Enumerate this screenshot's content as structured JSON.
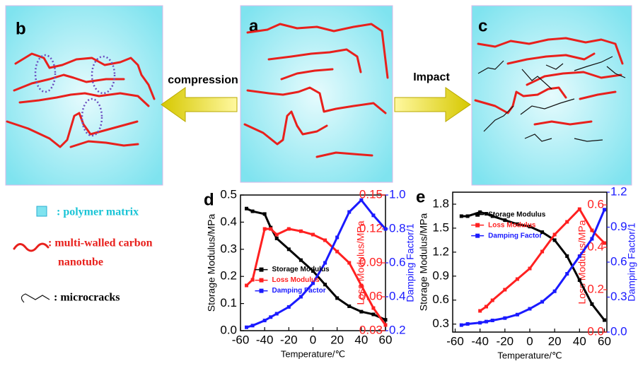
{
  "panels": {
    "a": "a",
    "b": "b",
    "c": "c"
  },
  "arrows": {
    "left": "compression",
    "right": "Impact"
  },
  "key": {
    "matrix": ": polymer matrix",
    "cnt_line1": ": multi-walled carbon",
    "cnt_line2": "nanotube",
    "cracks": ": microcracks"
  },
  "chart_data": [
    {
      "type": "line",
      "panel": "d",
      "xlabel": "Temperature/℃",
      "ylabel": "Storage Modulus/MPa",
      "y2label": "Loss Modulus/MPa",
      "y3label": "Damping Factor/1",
      "xlim": [
        -60,
        60
      ],
      "xticks": [
        -60,
        -40,
        -20,
        0,
        20,
        40,
        60
      ],
      "ylim": [
        0,
        0.5
      ],
      "yticks": [
        {
          "value": 0,
          "label": "0.0"
        },
        0.1,
        0.2,
        0.3,
        0.4,
        0.5
      ],
      "y2lim": [
        0.03,
        0.15
      ],
      "y2ticks": [
        0.03,
        0.06,
        0.09,
        0.12,
        0.15
      ],
      "y3lim": [
        0.2,
        1.0
      ],
      "y3ticks": [
        0.2,
        0.4,
        0.6,
        0.8,
        {
          "value": 1,
          "label": "1.0"
        }
      ],
      "legend": "center left",
      "x": [
        -55,
        -50,
        -40,
        -35,
        -30,
        -20,
        -10,
        0,
        10,
        20,
        30,
        40,
        50,
        60
      ],
      "series": [
        {
          "name": "Storage Modulus",
          "color": "#000000",
          "axis": "y",
          "values": [
            0.45,
            0.44,
            0.43,
            0.38,
            0.34,
            0.3,
            0.26,
            0.22,
            0.17,
            0.12,
            0.09,
            0.07,
            0.06,
            0.04
          ]
        },
        {
          "name": "Loss Modulus",
          "color": "#ff2020",
          "axis": "y2",
          "values": [
            0.07,
            0.075,
            0.12,
            0.12,
            0.115,
            0.12,
            0.118,
            0.115,
            0.11,
            0.1,
            0.09,
            0.07,
            0.05,
            0.035
          ]
        },
        {
          "name": "Damping Factor",
          "color": "#1a1aff",
          "axis": "y3",
          "values": [
            0.22,
            0.23,
            0.26,
            0.28,
            0.3,
            0.34,
            0.4,
            0.48,
            0.6,
            0.75,
            0.9,
            0.97,
            0.88,
            0.8
          ]
        }
      ]
    },
    {
      "type": "line",
      "panel": "e",
      "xlabel": "Temperature/℃",
      "ylabel": "Storage Modulus/MPa",
      "y2label": "Loss Modulus/MPa",
      "y3label": "Damping Factor/1",
      "xlim": [
        -62,
        62
      ],
      "xticks": [
        -60,
        -40,
        -20,
        0,
        20,
        40,
        60
      ],
      "ylim": [
        0.2,
        1.95
      ],
      "yticks": [
        0.3,
        0.6,
        0.9,
        1.2,
        1.5,
        1.8
      ],
      "y2lim": [
        0,
        0.66
      ],
      "y2ticks": [
        {
          "value": 0,
          "label": "0.0"
        },
        0.2,
        0.4,
        0.6
      ],
      "y3lim": [
        0,
        1.2
      ],
      "y3ticks": [
        {
          "value": 0,
          "label": "0.0"
        },
        0.3,
        0.6,
        0.9,
        1.2
      ],
      "legend": "upper left",
      "x": [
        -55,
        -50,
        -40,
        -35,
        -30,
        -20,
        -10,
        0,
        10,
        20,
        30,
        40,
        50,
        60
      ],
      "series": [
        {
          "name": "Storage Modulus",
          "color": "#000000",
          "axis": "y",
          "values": [
            1.65,
            1.65,
            1.7,
            1.68,
            1.65,
            1.6,
            1.55,
            1.52,
            1.45,
            1.35,
            1.15,
            0.85,
            0.55,
            0.35
          ]
        },
        {
          "name": "Loss Modulus",
          "color": "#ff2020",
          "axis": "y2",
          "values": [
            null,
            null,
            0.1,
            0.12,
            0.15,
            0.2,
            0.25,
            0.3,
            0.38,
            0.46,
            0.52,
            0.58,
            0.48,
            0.42
          ]
        },
        {
          "name": "Damping Factor",
          "color": "#1a1aff",
          "axis": "y3",
          "values": [
            0.06,
            0.07,
            0.08,
            0.09,
            0.1,
            0.12,
            0.15,
            0.2,
            0.26,
            0.35,
            0.5,
            0.65,
            0.8,
            1.05
          ]
        }
      ]
    }
  ]
}
